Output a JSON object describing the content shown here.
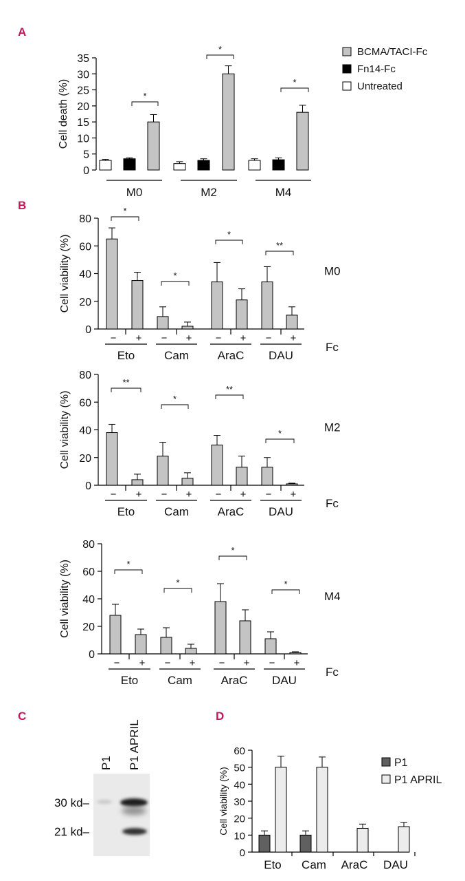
{
  "panels": {
    "a": "A",
    "b": "B",
    "c": "C",
    "d": "D"
  },
  "colors": {
    "gray": "#c4c4c4",
    "black": "#000000",
    "white": "#ffffff",
    "dark": "#606060",
    "light": "#ececec",
    "panel_label": "#c2185b"
  },
  "chart_data": [
    {
      "id": "A",
      "type": "bar",
      "ylabel": "Cell death (%)",
      "ylim": [
        0,
        35
      ],
      "yticks": [
        0,
        5,
        10,
        15,
        20,
        25,
        30,
        35
      ],
      "categories": [
        "M0",
        "M2",
        "M4"
      ],
      "series": [
        {
          "name": "Untreated",
          "color": "#ffffff",
          "values": [
            3,
            2,
            3
          ],
          "errors": [
            0.3,
            0.6,
            0.5
          ]
        },
        {
          "name": "Fn14-Fc",
          "color": "#000000",
          "values": [
            3.5,
            3,
            3.2
          ],
          "errors": [
            0.3,
            0.5,
            0.6
          ]
        },
        {
          "name": "BCMA/TACI-Fc",
          "color": "#c4c4c4",
          "values": [
            15,
            30,
            18
          ],
          "errors": [
            2.3,
            2.5,
            2.2
          ]
        }
      ],
      "legend": [
        "BCMA/TACI-Fc",
        "Fn14-Fc",
        "Untreated"
      ],
      "significance": [
        "*",
        "*",
        "*"
      ]
    },
    {
      "id": "B-M0",
      "type": "bar",
      "condition": "M0",
      "ylabel": "Cell viability (%)",
      "ylim": [
        0,
        80
      ],
      "yticks": [
        0,
        20,
        40,
        60,
        80
      ],
      "drugs": [
        "Eto",
        "Cam",
        "AraC",
        "DAU"
      ],
      "fc_labels": [
        "−",
        "+"
      ],
      "fc_axis_label": "Fc",
      "minus": [
        65,
        9,
        34,
        34
      ],
      "minus_err": [
        8,
        7,
        14,
        11
      ],
      "plus": [
        35,
        2,
        21,
        10
      ],
      "plus_err": [
        6,
        3,
        8,
        6
      ],
      "significance": [
        "*",
        "*",
        "*",
        "**"
      ]
    },
    {
      "id": "B-M2",
      "type": "bar",
      "condition": "M2",
      "ylabel": "Cell viability (%)",
      "ylim": [
        0,
        80
      ],
      "yticks": [
        0,
        20,
        40,
        60,
        80
      ],
      "drugs": [
        "Eto",
        "Cam",
        "AraC",
        "DAU"
      ],
      "fc_labels": [
        "−",
        "+"
      ],
      "fc_axis_label": "Fc",
      "minus": [
        38,
        21,
        29,
        13
      ],
      "minus_err": [
        6,
        10,
        7,
        7
      ],
      "plus": [
        4,
        5,
        13,
        1
      ],
      "plus_err": [
        4,
        4,
        8,
        0.5
      ],
      "significance": [
        "**",
        "*",
        "**",
        "*"
      ]
    },
    {
      "id": "B-M4",
      "type": "bar",
      "condition": "M4",
      "ylabel": "Cell viability (%)",
      "ylim": [
        0,
        80
      ],
      "yticks": [
        0,
        20,
        40,
        60,
        80
      ],
      "drugs": [
        "Eto",
        "Cam",
        "AraC",
        "DAU"
      ],
      "fc_labels": [
        "−",
        "+"
      ],
      "fc_axis_label": "Fc",
      "minus": [
        28,
        12,
        38,
        11
      ],
      "minus_err": [
        8,
        7,
        13,
        5
      ],
      "plus": [
        14,
        4,
        24,
        1
      ],
      "plus_err": [
        4,
        3,
        8,
        0.5
      ],
      "significance": [
        "*",
        "*",
        "*",
        "*"
      ]
    },
    {
      "id": "D",
      "type": "bar",
      "ylabel": "Cell viability (%)",
      "ylim": [
        0,
        60
      ],
      "yticks": [
        0,
        10,
        20,
        30,
        40,
        50,
        60
      ],
      "categories": [
        "Eto",
        "Cam",
        "AraC",
        "DAU"
      ],
      "series": [
        {
          "name": "P1",
          "color": "#606060",
          "values": [
            10,
            10,
            0,
            0
          ],
          "errors": [
            2.5,
            2.5,
            0,
            0
          ]
        },
        {
          "name": "P1 APRIL",
          "color": "#ececec",
          "values": [
            50,
            50,
            14,
            15
          ],
          "errors": [
            6.5,
            6,
            2.5,
            2.5
          ]
        }
      ],
      "legend": [
        "P1",
        "P1 APRIL"
      ]
    }
  ],
  "blot": {
    "lanes": [
      "P1",
      "P1 APRIL"
    ],
    "markers": [
      "30 kd–",
      "21 kd–"
    ]
  }
}
